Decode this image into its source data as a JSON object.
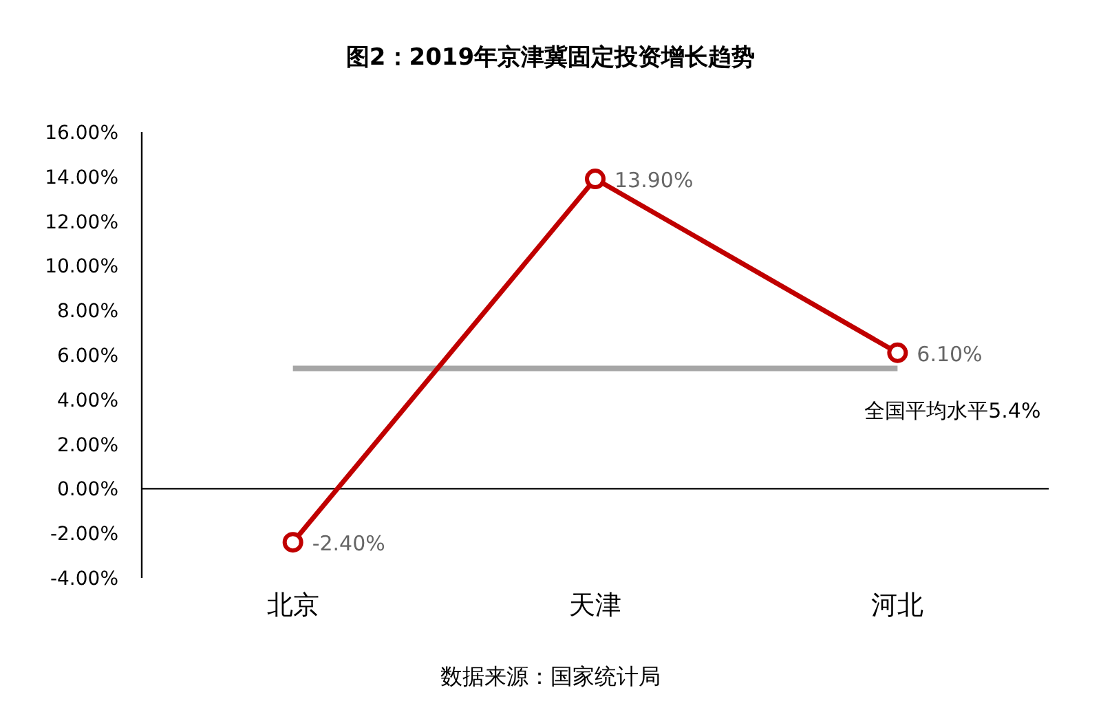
{
  "chart_data": {
    "type": "line",
    "title": "图2：2019年京津冀固定投资增长趋势",
    "categories": [
      "北京",
      "天津",
      "河北"
    ],
    "series": [
      {
        "color": "#c00000",
        "values": [
          -2.4,
          13.9,
          6.1
        ],
        "value_labels": [
          "-2.40%",
          "13.90%",
          "6.10%"
        ]
      }
    ],
    "ylim": [
      -4,
      16
    ],
    "yticks": [
      {
        "value": -4,
        "label": "-4.00%"
      },
      {
        "value": -2,
        "label": "-2.00%"
      },
      {
        "value": 0,
        "label": "0.00%"
      },
      {
        "value": 2,
        "label": "2.00%"
      },
      {
        "value": 4,
        "label": "4.00%"
      },
      {
        "value": 6,
        "label": "6.00%"
      },
      {
        "value": 8,
        "label": "8.00%"
      },
      {
        "value": 10,
        "label": "10.00%"
      },
      {
        "value": 12,
        "label": "12.00%"
      },
      {
        "value": 14,
        "label": "14.00%"
      },
      {
        "value": 16,
        "label": "16.00%"
      }
    ],
    "ref_lines": [
      {
        "axis": "y",
        "value": 5.4,
        "label": "全国平均水平5.4%",
        "color": "#a6a6a6"
      }
    ],
    "marker": "circle",
    "annotations": [
      "数据来源：国家统计局"
    ]
  }
}
